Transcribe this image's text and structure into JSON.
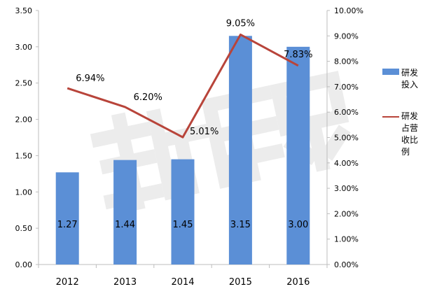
{
  "chart_data": {
    "type": "bar",
    "categories": [
      "2012",
      "2013",
      "2014",
      "2015",
      "2016"
    ],
    "series": [
      {
        "name": "研发投入",
        "type": "bar",
        "axis": "left",
        "values": [
          1.27,
          1.44,
          1.45,
          3.15,
          3.0
        ],
        "labels": [
          "1.27",
          "1.44",
          "1.45",
          "3.15",
          "3.00"
        ],
        "color": "#5b8fd6"
      },
      {
        "name": "研发占营收比例",
        "type": "line",
        "axis": "right",
        "values": [
          6.94,
          6.2,
          5.01,
          9.05,
          7.83
        ],
        "labels": [
          "6.94%",
          "6.20%",
          "5.01%",
          "9.05%",
          "7.83%"
        ],
        "color": "#b8443a"
      }
    ],
    "y_left": {
      "ylim": [
        0,
        3.5
      ],
      "ticks": [
        "0.00",
        "0.50",
        "1.00",
        "1.50",
        "2.00",
        "2.50",
        "3.00",
        "3.50"
      ]
    },
    "y_right": {
      "ylim": [
        0,
        10
      ],
      "ticks": [
        "0.00%",
        "1.00%",
        "2.00%",
        "3.00%",
        "4.00%",
        "5.00%",
        "6.00%",
        "7.00%",
        "8.00%",
        "9.00%",
        "10.00%"
      ]
    },
    "title": "",
    "xlabel": "",
    "ylabel": "",
    "grid": false,
    "legend_position": "right",
    "watermark": "新熙界"
  }
}
